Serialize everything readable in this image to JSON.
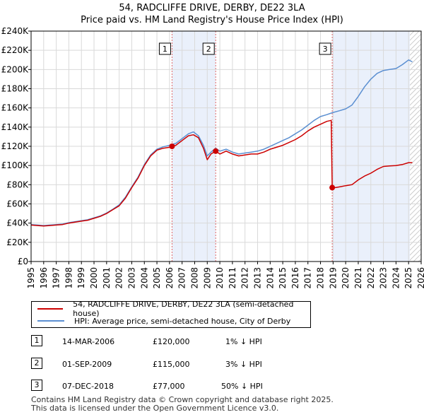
{
  "chart_data": {
    "type": "line",
    "title": "54, RADCLIFFE DRIVE, DERBY, DE22 3LA",
    "subtitle": "Price paid vs. HM Land Registry's House Price Index (HPI)",
    "xlim": [
      1995,
      2026
    ],
    "ylim": [
      0,
      240000
    ],
    "x_ticks": [
      "1995",
      "1996",
      "1997",
      "1998",
      "1999",
      "2000",
      "2001",
      "2002",
      "2003",
      "2004",
      "2005",
      "2006",
      "2007",
      "2008",
      "2009",
      "2010",
      "2011",
      "2012",
      "2013",
      "2014",
      "2015",
      "2016",
      "2017",
      "2018",
      "2019",
      "2020",
      "2021",
      "2022",
      "2023",
      "2024",
      "2025",
      "2026"
    ],
    "y_ticks": [
      {
        "value": 0,
        "label": "£0"
      },
      {
        "value": 20000,
        "label": "£20K"
      },
      {
        "value": 40000,
        "label": "£40K"
      },
      {
        "value": 60000,
        "label": "£60K"
      },
      {
        "value": 80000,
        "label": "£80K"
      },
      {
        "value": 100000,
        "label": "£100K"
      },
      {
        "value": 120000,
        "label": "£120K"
      },
      {
        "value": 140000,
        "label": "£140K"
      },
      {
        "value": 160000,
        "label": "£160K"
      },
      {
        "value": 180000,
        "label": "£180K"
      },
      {
        "value": 200000,
        "label": "£200K"
      },
      {
        "value": 220000,
        "label": "£220K"
      },
      {
        "value": 240000,
        "label": "£240K"
      }
    ],
    "series": [
      {
        "name": "54, RADCLIFFE DRIVE, DERBY, DE22 3LA (semi-detached house)",
        "color": "#cc0000",
        "x": [
          1995.0,
          1995.5,
          1996.0,
          1996.5,
          1997.0,
          1997.5,
          1998.0,
          1998.5,
          1999.0,
          1999.5,
          2000.0,
          2000.5,
          2001.0,
          2001.5,
          2002.0,
          2002.5,
          2003.0,
          2003.5,
          2004.0,
          2004.5,
          2005.0,
          2005.5,
          2006.0,
          2006.2,
          2006.5,
          2007.0,
          2007.5,
          2007.9,
          2008.3,
          2008.7,
          2009.0,
          2009.3,
          2009.67,
          2010.0,
          2010.5,
          2011.0,
          2011.5,
          2012.0,
          2012.5,
          2013.0,
          2013.5,
          2014.0,
          2014.5,
          2015.0,
          2015.5,
          2016.0,
          2016.5,
          2017.0,
          2017.5,
          2018.0,
          2018.5,
          2018.85,
          2018.93,
          2019.2,
          2019.6,
          2020.0,
          2020.5,
          2021.0,
          2021.5,
          2022.0,
          2022.5,
          2023.0,
          2023.5,
          2024.0,
          2024.5,
          2025.0,
          2025.3
        ],
        "y": [
          38000,
          37500,
          37000,
          37500,
          38000,
          38500,
          40000,
          41000,
          42000,
          43000,
          45000,
          47000,
          50000,
          54000,
          58000,
          66000,
          77000,
          87000,
          100000,
          110000,
          116000,
          118000,
          119000,
          120000,
          121000,
          126000,
          131000,
          132000,
          129000,
          118000,
          106000,
          112000,
          115000,
          112000,
          115000,
          112000,
          110000,
          111000,
          112000,
          112000,
          114000,
          117000,
          119000,
          121000,
          124000,
          127000,
          131000,
          136000,
          140000,
          143000,
          146000,
          147000,
          77000,
          77000,
          78000,
          79000,
          80000,
          85000,
          89000,
          92000,
          96000,
          99000,
          99500,
          100000,
          101000,
          103000,
          103000
        ]
      },
      {
        "name": "HPI: Average price, semi-detached house, City of Derby",
        "color": "#5b8fd1",
        "x": [
          1995.0,
          1995.5,
          1996.0,
          1996.5,
          1997.0,
          1997.5,
          1998.0,
          1998.5,
          1999.0,
          1999.5,
          2000.0,
          2000.5,
          2001.0,
          2001.5,
          2002.0,
          2002.5,
          2003.0,
          2003.5,
          2004.0,
          2004.5,
          2005.0,
          2005.5,
          2006.0,
          2006.5,
          2007.0,
          2007.5,
          2007.9,
          2008.3,
          2008.7,
          2009.0,
          2009.3,
          2009.67,
          2010.0,
          2010.5,
          2011.0,
          2011.5,
          2012.0,
          2012.5,
          2013.0,
          2013.5,
          2014.0,
          2014.5,
          2015.0,
          2015.5,
          2016.0,
          2016.5,
          2017.0,
          2017.5,
          2018.0,
          2018.5,
          2018.93,
          2019.5,
          2020.0,
          2020.5,
          2021.0,
          2021.5,
          2022.0,
          2022.5,
          2023.0,
          2023.5,
          2024.0,
          2024.5,
          2025.0,
          2025.3
        ],
        "y": [
          38500,
          38000,
          37500,
          38000,
          38500,
          39000,
          40500,
          41500,
          42500,
          43500,
          45500,
          47500,
          50500,
          54500,
          59000,
          67000,
          78000,
          88000,
          101000,
          111000,
          117000,
          119500,
          121000,
          123000,
          128000,
          133000,
          135000,
          131000,
          121000,
          110000,
          114000,
          118000,
          115000,
          117000,
          114000,
          112000,
          113000,
          114000,
          115000,
          117000,
          120000,
          123000,
          126000,
          129000,
          133000,
          137000,
          142000,
          147000,
          151000,
          153000,
          155000,
          157000,
          159000,
          163000,
          172000,
          182000,
          190000,
          196000,
          199000,
          200000,
          201000,
          205000,
          210000,
          208000
        ]
      }
    ],
    "transactions": [
      {
        "num": "1",
        "x": 2006.2,
        "y": 120000,
        "date": "14-MAR-2006",
        "price": "£120,000",
        "hpi": "1% ↓ HPI"
      },
      {
        "num": "2",
        "x": 2009.67,
        "y": 115000,
        "date": "01-SEP-2009",
        "price": "£115,000",
        "hpi": "3% ↓ HPI"
      },
      {
        "num": "3",
        "x": 2018.93,
        "y": 77000,
        "date": "07-DEC-2018",
        "price": "£77,000",
        "hpi": "50% ↓ HPI"
      }
    ],
    "shaded_ranges": [
      [
        2006.2,
        2009.67
      ],
      [
        2018.93,
        2026
      ]
    ],
    "hatched_range": [
      2025.1,
      2026
    ]
  },
  "footer": {
    "line1": "Contains HM Land Registry data © Crown copyright and database right 2025.",
    "line2": "This data is licensed under the Open Government Licence v3.0."
  }
}
